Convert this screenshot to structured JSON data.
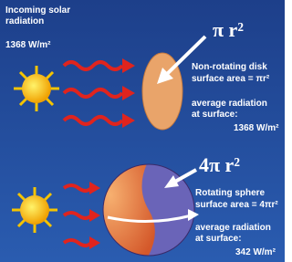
{
  "header": {
    "line1": "Incoming solar",
    "line2": "radiation",
    "flux": "1368 W/m²"
  },
  "disk": {
    "formula": "π r²",
    "label": "Non-rotating disk",
    "area": "surface area = πr²",
    "avg1": "average radiation",
    "avg2": "at surface:",
    "value": "1368 W/m²"
  },
  "sphere": {
    "formula": "4π r²",
    "label": "Rotating sphere",
    "area": "surface area = 4πr²",
    "avg1": "average radiation",
    "avg2": "at surface:",
    "value": "342 W/m²"
  }
}
